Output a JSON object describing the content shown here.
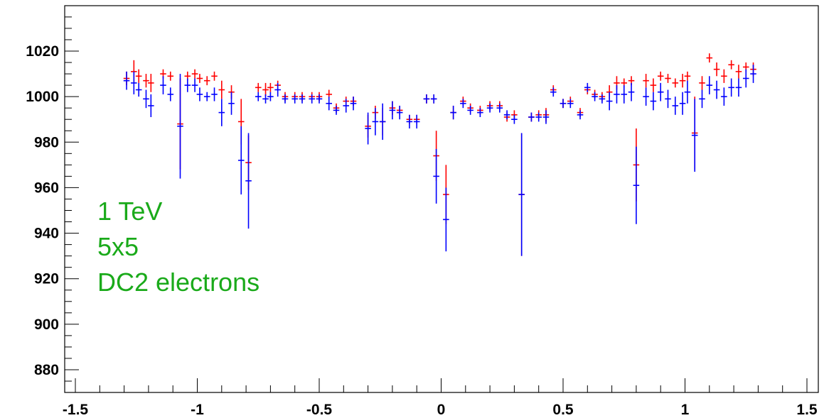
{
  "chart_data": {
    "type": "scatter",
    "title": "",
    "xlabel": "",
    "ylabel": "",
    "xlim": [
      -1.5,
      1.5
    ],
    "ylim": [
      870,
      1040
    ],
    "x_ticks": [
      -1.5,
      -1,
      -0.5,
      0,
      0.5,
      1,
      1.5
    ],
    "x_tick_labels": [
      "-1.5",
      "-1",
      "-0.5",
      "0",
      "0.5",
      "1",
      "1.5"
    ],
    "y_ticks": [
      880,
      900,
      920,
      940,
      960,
      980,
      1000,
      1020
    ],
    "y_tick_labels": [
      "880",
      "900",
      "920",
      "940",
      "960",
      "980",
      "1000",
      "1020"
    ],
    "grid": false,
    "annotations": [
      "1 TeV",
      "5x5",
      "DC2 electrons"
    ],
    "annotation_color": "#1aaa1a",
    "x_bin_half_width": 0.0125,
    "series": [
      {
        "color": "#ff0000",
        "points": [
          [
            -1.29,
            1008,
            3
          ],
          [
            -1.26,
            1011,
            5
          ],
          [
            -1.24,
            1009,
            3
          ],
          [
            -1.21,
            1007,
            3
          ],
          [
            -1.19,
            1006,
            4
          ],
          [
            -1.14,
            1010,
            2
          ],
          [
            -1.11,
            1009,
            2
          ],
          [
            -1.07,
            988,
            20
          ],
          [
            -1.04,
            1009,
            2
          ],
          [
            -1.01,
            1010,
            2
          ],
          [
            -0.99,
            1008,
            2
          ],
          [
            -0.96,
            1007,
            2
          ],
          [
            -0.93,
            1009,
            2
          ],
          [
            -0.9,
            1003,
            4
          ],
          [
            -0.86,
            1002,
            3
          ],
          [
            -0.82,
            989,
            10
          ],
          [
            -0.79,
            971,
            12
          ],
          [
            -0.75,
            1004,
            2
          ],
          [
            -0.72,
            1003,
            3
          ],
          [
            -0.7,
            1004,
            2
          ],
          [
            -0.67,
            1005,
            2
          ],
          [
            -0.64,
            1000,
            2
          ],
          [
            -0.6,
            1000,
            2
          ],
          [
            -0.57,
            1000,
            2
          ],
          [
            -0.53,
            1000,
            2
          ],
          [
            -0.5,
            1000,
            2
          ],
          [
            -0.46,
            1001,
            2
          ],
          [
            -0.43,
            995,
            2
          ],
          [
            -0.39,
            998,
            2
          ],
          [
            -0.36,
            998,
            2
          ],
          [
            -0.3,
            987,
            5
          ],
          [
            -0.27,
            993,
            3
          ],
          [
            -0.24,
            989,
            6
          ],
          [
            -0.2,
            995,
            3
          ],
          [
            -0.17,
            994,
            2
          ],
          [
            -0.13,
            990,
            2
          ],
          [
            -0.1,
            990,
            2
          ],
          [
            -0.06,
            999,
            2
          ],
          [
            -0.03,
            999,
            2
          ],
          [
            -0.02,
            974,
            11
          ],
          [
            0.02,
            957,
            13
          ],
          [
            0.05,
            993,
            3
          ],
          [
            0.09,
            998,
            2
          ],
          [
            0.12,
            995,
            2
          ],
          [
            0.16,
            994,
            2
          ],
          [
            0.2,
            996,
            2
          ],
          [
            0.24,
            996,
            2
          ],
          [
            0.27,
            991,
            2
          ],
          [
            0.3,
            992,
            2
          ],
          [
            0.33,
            957,
            27
          ],
          [
            0.37,
            991,
            2
          ],
          [
            0.4,
            992,
            2
          ],
          [
            0.43,
            992,
            3
          ],
          [
            0.46,
            1003,
            2
          ],
          [
            0.5,
            997,
            2
          ],
          [
            0.53,
            998,
            2
          ],
          [
            0.57,
            993,
            2
          ],
          [
            0.6,
            1003,
            2
          ],
          [
            0.63,
            1001,
            2
          ],
          [
            0.66,
            1000,
            2
          ],
          [
            0.69,
            1002,
            3
          ],
          [
            0.72,
            1006,
            3
          ],
          [
            0.75,
            1006,
            2
          ],
          [
            0.78,
            1007,
            2
          ],
          [
            0.8,
            970,
            16
          ],
          [
            0.84,
            1007,
            3
          ],
          [
            0.87,
            1005,
            3
          ],
          [
            0.9,
            1009,
            2
          ],
          [
            0.93,
            1008,
            2
          ],
          [
            0.96,
            1006,
            2
          ],
          [
            0.99,
            1007,
            3
          ],
          [
            1.01,
            1009,
            2
          ],
          [
            1.04,
            984,
            16
          ],
          [
            1.07,
            1006,
            3
          ],
          [
            1.1,
            1017,
            2
          ],
          [
            1.13,
            1012,
            3
          ],
          [
            1.16,
            1009,
            3
          ],
          [
            1.19,
            1014,
            2
          ],
          [
            1.22,
            1011,
            3
          ],
          [
            1.25,
            1013,
            2
          ],
          [
            1.28,
            1012,
            3
          ]
        ]
      },
      {
        "color": "#0000ff",
        "points": [
          [
            -1.29,
            1007,
            4
          ],
          [
            -1.26,
            1006,
            5
          ],
          [
            -1.24,
            1003,
            3
          ],
          [
            -1.21,
            999,
            4
          ],
          [
            -1.19,
            996,
            5
          ],
          [
            -1.14,
            1005,
            4
          ],
          [
            -1.11,
            1001,
            3
          ],
          [
            -1.07,
            987,
            23
          ],
          [
            -1.04,
            1005,
            3
          ],
          [
            -1.01,
            1005,
            3
          ],
          [
            -0.99,
            1001,
            3
          ],
          [
            -0.96,
            1000,
            2
          ],
          [
            -0.93,
            1001,
            3
          ],
          [
            -0.9,
            993,
            6
          ],
          [
            -0.86,
            997,
            5
          ],
          [
            -0.82,
            972,
            15
          ],
          [
            -0.79,
            963,
            21
          ],
          [
            -0.75,
            1000,
            2
          ],
          [
            -0.72,
            999,
            2
          ],
          [
            -0.7,
            1000,
            2
          ],
          [
            -0.67,
            1003,
            3
          ],
          [
            -0.64,
            999,
            2
          ],
          [
            -0.6,
            999,
            2
          ],
          [
            -0.57,
            999,
            2
          ],
          [
            -0.53,
            999,
            2
          ],
          [
            -0.5,
            999,
            2
          ],
          [
            -0.46,
            997,
            3
          ],
          [
            -0.43,
            994,
            2
          ],
          [
            -0.39,
            996,
            3
          ],
          [
            -0.36,
            997,
            3
          ],
          [
            -0.3,
            986,
            7
          ],
          [
            -0.27,
            989,
            6
          ],
          [
            -0.24,
            989,
            8
          ],
          [
            -0.2,
            994,
            4
          ],
          [
            -0.17,
            993,
            3
          ],
          [
            -0.13,
            989,
            3
          ],
          [
            -0.1,
            989,
            3
          ],
          [
            -0.06,
            999,
            2
          ],
          [
            -0.03,
            999,
            2
          ],
          [
            -0.02,
            965,
            12
          ],
          [
            0.02,
            946,
            14
          ],
          [
            0.05,
            993,
            3
          ],
          [
            0.09,
            997,
            2
          ],
          [
            0.12,
            994,
            2
          ],
          [
            0.16,
            993,
            2
          ],
          [
            0.2,
            995,
            2
          ],
          [
            0.24,
            995,
            2
          ],
          [
            0.27,
            992,
            2
          ],
          [
            0.3,
            990,
            2
          ],
          [
            0.33,
            957,
            27
          ],
          [
            0.37,
            991,
            2
          ],
          [
            0.4,
            991,
            2
          ],
          [
            0.43,
            991,
            3
          ],
          [
            0.46,
            1002,
            2
          ],
          [
            0.5,
            997,
            2
          ],
          [
            0.53,
            997,
            2
          ],
          [
            0.57,
            992,
            2
          ],
          [
            0.6,
            1004,
            2
          ],
          [
            0.63,
            1000,
            2
          ],
          [
            0.66,
            999,
            2
          ],
          [
            0.69,
            998,
            4
          ],
          [
            0.72,
            1001,
            4
          ],
          [
            0.75,
            1001,
            4
          ],
          [
            0.78,
            1002,
            4
          ],
          [
            0.8,
            961,
            17
          ],
          [
            0.84,
            1000,
            4
          ],
          [
            0.87,
            998,
            4
          ],
          [
            0.9,
            1002,
            4
          ],
          [
            0.93,
            999,
            4
          ],
          [
            0.96,
            996,
            4
          ],
          [
            0.99,
            997,
            5
          ],
          [
            1.01,
            1002,
            5
          ],
          [
            1.04,
            983,
            16
          ],
          [
            1.07,
            999,
            4
          ],
          [
            1.1,
            1005,
            4
          ],
          [
            1.13,
            1003,
            4
          ],
          [
            1.16,
            1000,
            4
          ],
          [
            1.19,
            1004,
            4
          ],
          [
            1.22,
            1004,
            4
          ],
          [
            1.25,
            1008,
            4
          ],
          [
            1.28,
            1010,
            4
          ]
        ]
      }
    ]
  }
}
